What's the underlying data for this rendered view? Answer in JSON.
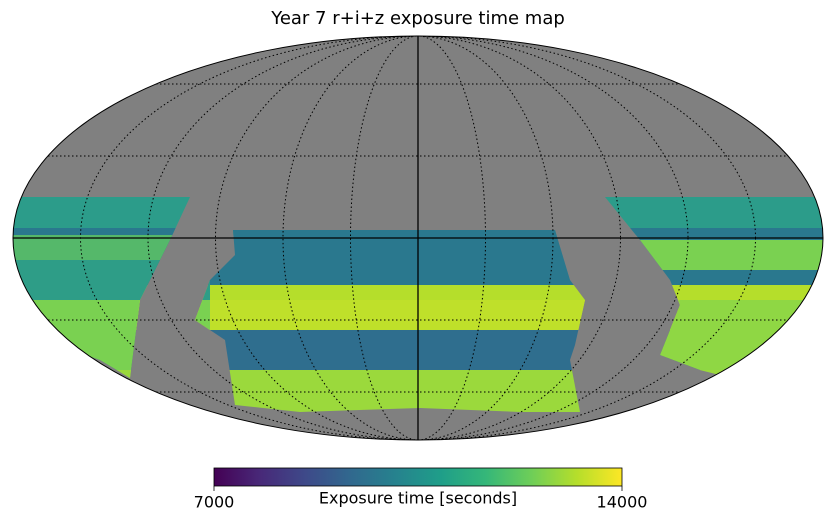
{
  "chart_data": {
    "type": "mollweide",
    "title": "Year 7 r+i+z exposure time map",
    "colormap": "viridis",
    "colorbar": {
      "label": "Exposure time [seconds]",
      "lim": [
        7000,
        14000
      ],
      "ticks": [
        7000,
        14000
      ]
    },
    "background_color": "#808080",
    "graticule": true
  }
}
